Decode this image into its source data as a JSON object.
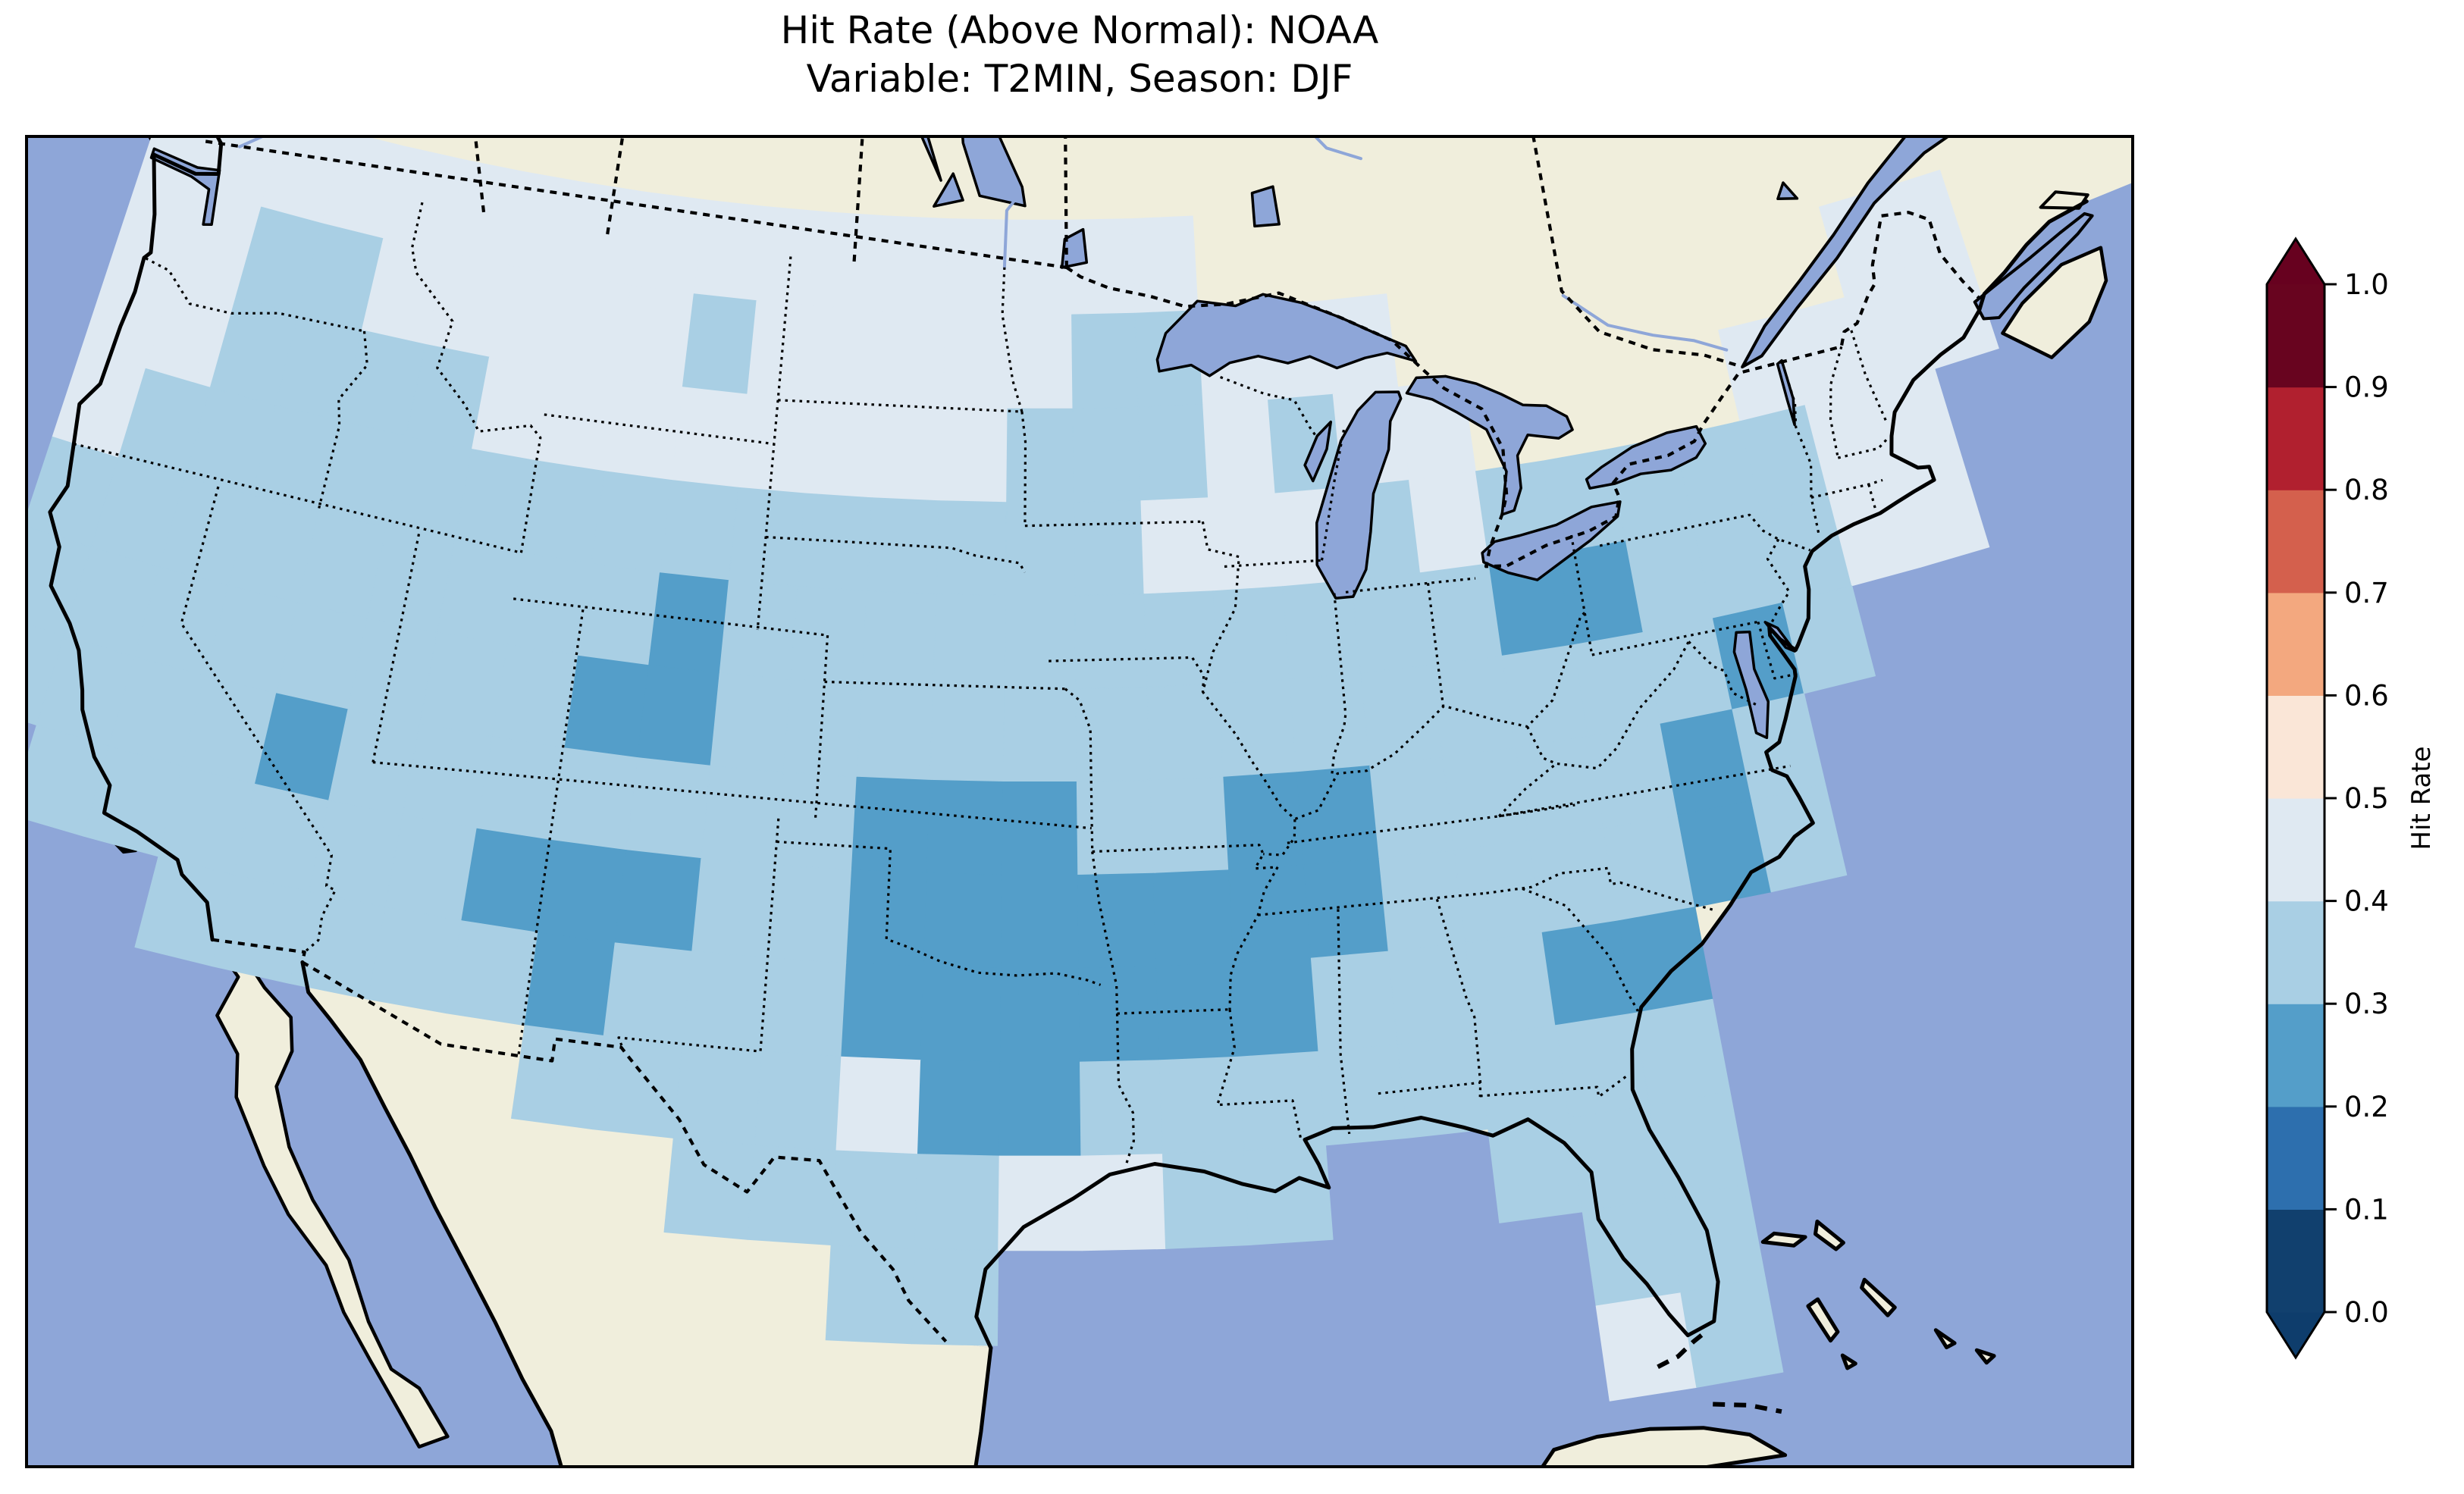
{
  "title": {
    "line1": "Hit Rate (Above Normal): NOAA",
    "line2": "Variable: T2MIN, Season: DJF"
  },
  "colorbar": {
    "label": "Hit Rate",
    "tick_labels": [
      "0.0",
      "0.1",
      "0.2",
      "0.3",
      "0.4",
      "0.5",
      "0.6",
      "0.7",
      "0.8",
      "0.9",
      "1.0"
    ]
  },
  "palette": {
    "ocean": "#8ea6d8",
    "land": "#f0eedc",
    "coastline": "#000000",
    "frame": "#000000",
    "bin_colors": [
      "#11406e",
      "#2d6fae",
      "#549ec9",
      "#a9cfe4",
      "#dfe9f2",
      "#fae6d7",
      "#f3a87f",
      "#d4604d",
      "#b1202f",
      "#68041f"
    ],
    "under_arrow": "#0e3d6c",
    "over_arrow": "#67011f"
  },
  "chart_data": {
    "type": "heatmap",
    "title": "Hit Rate (Above Normal): NOAA",
    "subtitle": "Variable: T2MIN, Season: DJF",
    "source": "NOAA",
    "variable": "T2MIN",
    "season": "DJF",
    "metric": "Hit Rate (Above Normal)",
    "region": "Contiguous United States",
    "legend_position": "right",
    "colorbar": {
      "label": "Hit Rate",
      "ticks": [
        0.0,
        0.1,
        0.2,
        0.3,
        0.4,
        0.5,
        0.6,
        0.7,
        0.8,
        0.9,
        1.0
      ],
      "bin_edges": [
        0.0,
        0.1,
        0.2,
        0.3,
        0.4,
        0.5,
        0.6,
        0.7,
        0.8,
        0.9,
        1.0
      ],
      "bin_colors": [
        "#11406e",
        "#2d6fae",
        "#549ec9",
        "#a9cfe4",
        "#dfe9f2",
        "#fae6d7",
        "#f3a87f",
        "#d4604d",
        "#b1202f",
        "#68041f"
      ],
      "extend": "both"
    },
    "value_range_observed": [
      0.2,
      0.5
    ],
    "grid": {
      "lon_west": -125,
      "lon_east": -67,
      "lat_north": 50,
      "lat_south": 24,
      "cell_size_deg": 2,
      "encoding": "each character is one 2-degree cell, west to east; digit d means hit-rate bin [d/10,(d+1)/10); '.' means no data (outside CONUS)",
      "rows": [
        "44444444444444444............",
        "44334444434444433444.......44",
        "443333444444443334344....4444",
        "4333333333333333444343333344.",
        "3333333332333333333332233344.",
        "33333333223333333333333323...",
        "3333233333332223322333323....",
        ".333333222332222222333323....",
        "...33333233322222233322......",
        "........333342233333333......",
        "..........33334433..333......",
        "............33.......33......",
        ".....................43......"
      ]
    }
  }
}
